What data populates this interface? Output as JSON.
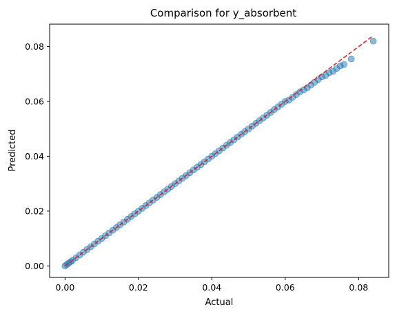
{
  "chart_data": {
    "type": "scatter",
    "title": "Comparison for y_absorbent",
    "xlabel": "Actual",
    "ylabel": "Predicted",
    "xlim": [
      -0.0042,
      0.0882
    ],
    "ylim": [
      -0.0042,
      0.0882
    ],
    "xticks": [
      "0.00",
      "0.02",
      "0.04",
      "0.06",
      "0.08"
    ],
    "yticks": [
      "0.00",
      "0.02",
      "0.04",
      "0.06",
      "0.08"
    ],
    "grid": false,
    "point_color": "#1f77b4",
    "point_alpha": 0.5,
    "points": {
      "x": [
        0.0,
        0.0005,
        0.001,
        0.0015,
        0.002,
        0.003,
        0.004,
        0.005,
        0.006,
        0.007,
        0.008,
        0.009,
        0.01,
        0.011,
        0.012,
        0.013,
        0.014,
        0.015,
        0.016,
        0.017,
        0.018,
        0.019,
        0.02,
        0.021,
        0.022,
        0.023,
        0.024,
        0.025,
        0.026,
        0.027,
        0.028,
        0.029,
        0.03,
        0.031,
        0.032,
        0.033,
        0.034,
        0.035,
        0.036,
        0.037,
        0.038,
        0.039,
        0.04,
        0.041,
        0.042,
        0.043,
        0.044,
        0.045,
        0.046,
        0.047,
        0.048,
        0.049,
        0.05,
        0.051,
        0.052,
        0.053,
        0.054,
        0.055,
        0.056,
        0.057,
        0.058,
        0.059,
        0.06,
        0.061,
        0.062,
        0.063,
        0.064,
        0.065,
        0.066,
        0.067,
        0.068,
        0.069,
        0.07,
        0.071,
        0.072,
        0.073,
        0.074,
        0.075,
        0.076,
        0.078,
        0.084
      ],
      "y": [
        0.0,
        0.0005,
        0.001,
        0.0015,
        0.002,
        0.003,
        0.004,
        0.005,
        0.006,
        0.007,
        0.008,
        0.009,
        0.01,
        0.011,
        0.012,
        0.013,
        0.014,
        0.015,
        0.016,
        0.017,
        0.018,
        0.019,
        0.02,
        0.021,
        0.022,
        0.023,
        0.024,
        0.025,
        0.026,
        0.027,
        0.028,
        0.029,
        0.03,
        0.031,
        0.032,
        0.033,
        0.034,
        0.035,
        0.036,
        0.037,
        0.038,
        0.039,
        0.04,
        0.041,
        0.042,
        0.043,
        0.044,
        0.045,
        0.046,
        0.047,
        0.048,
        0.049,
        0.05,
        0.051,
        0.052,
        0.053,
        0.054,
        0.055,
        0.056,
        0.057,
        0.058,
        0.059,
        0.06,
        0.0605,
        0.0615,
        0.0625,
        0.0635,
        0.0642,
        0.065,
        0.066,
        0.067,
        0.068,
        0.069,
        0.0695,
        0.0705,
        0.071,
        0.072,
        0.073,
        0.0735,
        0.0755,
        0.082
      ]
    },
    "reference_line": {
      "from": [
        0.0,
        0.0
      ],
      "to": [
        0.084,
        0.084
      ],
      "color": "#d62728",
      "style": "dashed"
    }
  }
}
